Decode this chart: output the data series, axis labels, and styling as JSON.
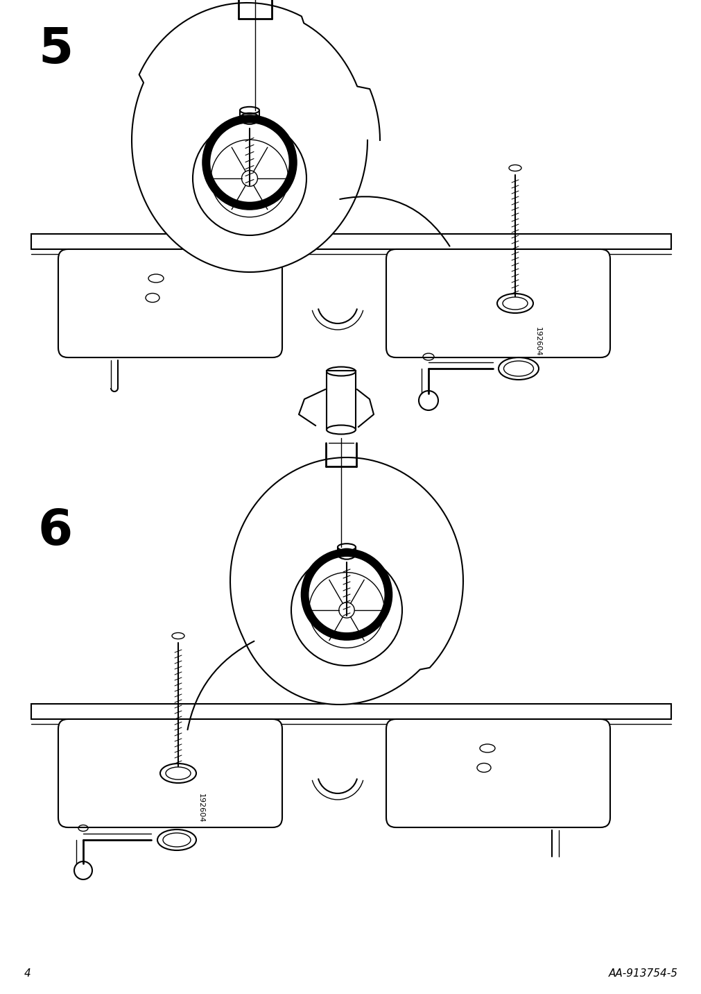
{
  "page_number": "4",
  "article_number": "AA-913754-5",
  "background_color": "#ffffff",
  "line_color": "#000000",
  "step5_number": "5",
  "step6_number": "6",
  "step5_label": "192604",
  "step6_label": "192604",
  "figsize": [
    10.12,
    14.32
  ],
  "dpi": 100
}
